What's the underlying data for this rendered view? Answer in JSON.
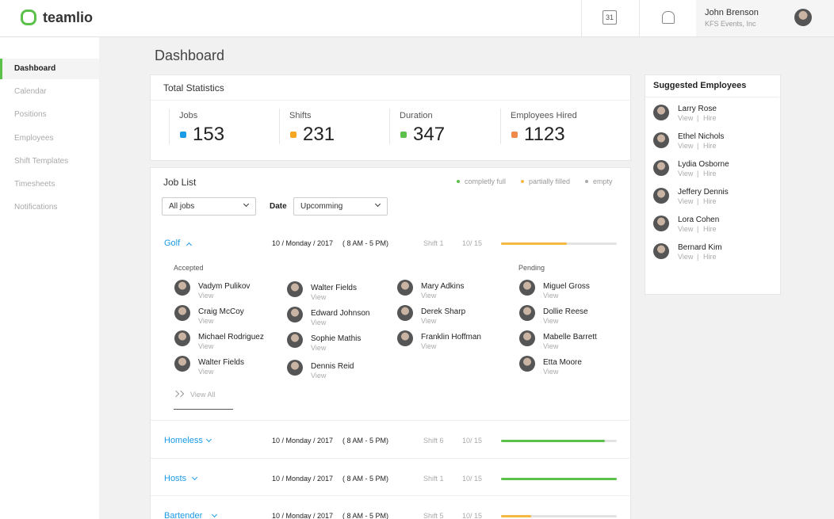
{
  "header": {
    "brand": "teamlio",
    "calendar_day": "31",
    "user_name": "John Brenson",
    "user_company": "KFS Events, Inc"
  },
  "sidebar": {
    "items": [
      "Dashboard",
      "Calendar",
      "Positions",
      "Employees",
      "Shift Templates",
      "Timesheets",
      "Notifications"
    ],
    "active": 0
  },
  "page_title": "Dashboard",
  "stats": {
    "title": "Total Statistics",
    "items": [
      {
        "label": "Jobs",
        "value": 153,
        "color": "#1a9be6"
      },
      {
        "label": "Shifts",
        "value": 231,
        "color": "#f5a623"
      },
      {
        "label": "Duration",
        "value": 347,
        "color": "#5cc14a"
      },
      {
        "label": "Employees Hired",
        "value": 1123,
        "color": "#f08a4b"
      }
    ]
  },
  "job_list": {
    "title": "Job List",
    "legend": [
      {
        "label": "completly full",
        "color": "#5cc14a"
      },
      {
        "label": "partially filled",
        "color": "#f5b841"
      },
      {
        "label": "empty",
        "color": "#aaaaaa"
      }
    ],
    "filter": "All jobs",
    "date_label": "Date",
    "date_filter": "Upcomming",
    "jobs": [
      {
        "name": "Golf",
        "date": "10 / Monday / 2017",
        "time": "( 8 AM - 5 PM)",
        "shift": "Shift 1",
        "count": "10/ 15",
        "progress": 57,
        "color": "#f5b841",
        "expanded": true
      },
      {
        "name": "Homeless",
        "date": "10 / Monday / 2017",
        "time": "( 8 AM - 5 PM)",
        "shift": "Shift 6",
        "count": "10/ 15",
        "progress": 90,
        "color": "#5cc14a",
        "expanded": false
      },
      {
        "name": "Hosts",
        "date": "10 / Monday / 2017",
        "time": "( 8 AM - 5 PM)",
        "shift": "Shift 1",
        "count": "10/ 15",
        "progress": 100,
        "color": "#5cc14a",
        "expanded": false
      },
      {
        "name": "Bartender",
        "date": "10 / Monday / 2017",
        "time": "( 8 AM - 5 PM)",
        "shift": "Shift 5",
        "count": "10/ 15",
        "progress": 26,
        "color": "#f5b841",
        "expanded": false
      }
    ],
    "accepted": {
      "label": "Accepted",
      "columns": [
        [
          "Vadym Pulikov",
          "Craig McCoy",
          "Michael Rodriguez",
          "Walter Fields"
        ],
        [
          "Walter Fields",
          "Edward Johnson",
          "Sophie Mathis",
          "Dennis Reid"
        ],
        [
          "Mary Adkins",
          "Derek Sharp",
          "Franklin Hoffman"
        ]
      ]
    },
    "pending": {
      "label": "Pending",
      "names": [
        "Miguel Gross",
        "Dollie Reese",
        "Mabelle Barrett",
        "Etta Moore"
      ]
    },
    "view_label": "View",
    "view_all": "View All"
  },
  "suggested": {
    "title": "Suggested Employees",
    "names": [
      "Larry Rose",
      "Ethel Nichols",
      "Lydia Osborne",
      "Jeffery Dennis",
      "Lora Cohen",
      "Bernard Kim"
    ],
    "view": "View",
    "separator": "|",
    "hire": "Hire"
  }
}
